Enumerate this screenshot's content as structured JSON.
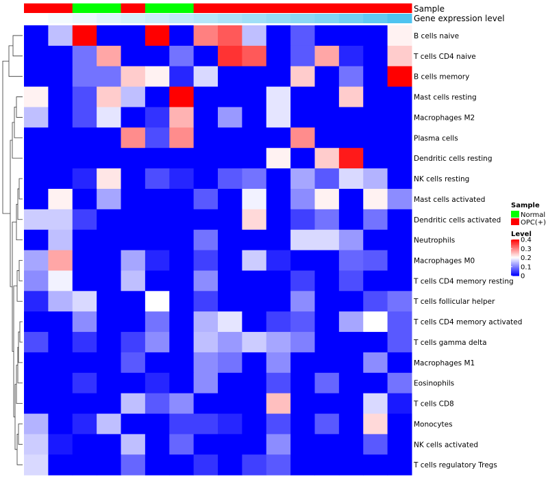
{
  "chart_data": {
    "type": "heatmap",
    "title": "",
    "rows": [
      "B cells naive",
      "T cells CD4 naive",
      "B cells memory",
      "Mast cells resting",
      "Macrophages M2",
      "Plasma cells",
      "Dendritic cells resting",
      "NK cells resting",
      "Mast cells activated",
      "Dendritic cells activated",
      "Neutrophils",
      "Macrophages M0",
      "T cells CD4 memory resting",
      "T cells follicular helper",
      "T cells CD4 memory activated",
      "T cells gamma delta",
      "Macrophages M1",
      "Eosinophils",
      "T cells CD8",
      "Monocytes",
      "NK cells activated",
      "T cells regulatory  Tregs"
    ],
    "n_columns": 16,
    "values": [
      [
        0.0,
        0.15,
        0.4,
        0.0,
        0.0,
        0.4,
        0.0,
        0.3,
        0.33,
        0.15,
        0.0,
        0.07,
        0.0,
        0.0,
        0.0,
        0.21
      ],
      [
        0.0,
        0.0,
        0.09,
        0.27,
        0.0,
        0.0,
        0.09,
        0.0,
        0.36,
        0.33,
        0.0,
        0.07,
        0.27,
        0.03,
        0.0,
        0.24
      ],
      [
        0.0,
        0.0,
        0.09,
        0.09,
        0.24,
        0.21,
        0.03,
        0.17,
        0.0,
        0.0,
        0.0,
        0.24,
        0.0,
        0.09,
        0.0,
        0.4
      ],
      [
        0.21,
        0.0,
        0.06,
        0.24,
        0.15,
        0.0,
        0.4,
        0.0,
        0.0,
        0.0,
        0.18,
        0.0,
        0.0,
        0.24,
        0.0,
        0.0
      ],
      [
        0.15,
        0.0,
        0.06,
        0.18,
        0.0,
        0.04,
        0.26,
        0.0,
        0.12,
        0.0,
        0.18,
        0.0,
        0.0,
        0.0,
        0.0,
        0.0
      ],
      [
        0.0,
        0.0,
        0.0,
        0.0,
        0.29,
        0.06,
        0.29,
        0.0,
        0.0,
        0.0,
        0.0,
        0.29,
        0.0,
        0.0,
        0.0,
        0.0
      ],
      [
        0.0,
        0.0,
        0.0,
        0.0,
        0.0,
        0.0,
        0.0,
        0.0,
        0.0,
        0.0,
        0.21,
        0.0,
        0.24,
        0.38,
        0.0,
        0.0
      ],
      [
        0.0,
        0.0,
        0.03,
        0.22,
        0.0,
        0.06,
        0.03,
        0.0,
        0.07,
        0.09,
        0.0,
        0.13,
        0.07,
        0.17,
        0.14,
        0.0
      ],
      [
        0.0,
        0.21,
        0.0,
        0.13,
        0.0,
        0.0,
        0.0,
        0.07,
        0.0,
        0.19,
        0.0,
        0.11,
        0.21,
        0.0,
        0.21,
        0.11
      ],
      [
        0.16,
        0.16,
        0.05,
        0.0,
        0.0,
        0.0,
        0.0,
        0.0,
        0.0,
        0.23,
        0.0,
        0.05,
        0.09,
        0.0,
        0.09,
        0.0
      ],
      [
        0.0,
        0.15,
        0.0,
        0.0,
        0.0,
        0.0,
        0.0,
        0.09,
        0.0,
        0.0,
        0.0,
        0.17,
        0.17,
        0.12,
        0.0,
        0.0
      ],
      [
        0.13,
        0.27,
        0.0,
        0.0,
        0.13,
        0.03,
        0.0,
        0.05,
        0.0,
        0.16,
        0.03,
        0.0,
        0.0,
        0.08,
        0.07,
        0.0
      ],
      [
        0.11,
        0.19,
        0.0,
        0.0,
        0.15,
        0.0,
        0.0,
        0.11,
        0.0,
        0.0,
        0.0,
        0.05,
        0.0,
        0.06,
        0.0,
        0.0
      ],
      [
        0.03,
        0.14,
        0.17,
        0.0,
        0.0,
        0.2,
        0.0,
        0.05,
        0.0,
        0.0,
        0.0,
        0.11,
        0.0,
        0.0,
        0.06,
        0.09
      ],
      [
        0.0,
        0.0,
        0.11,
        0.0,
        0.0,
        0.09,
        0.0,
        0.14,
        0.18,
        0.0,
        0.05,
        0.07,
        0.0,
        0.13,
        0.2,
        0.07
      ],
      [
        0.06,
        0.0,
        0.04,
        0.0,
        0.05,
        0.11,
        0.0,
        0.15,
        0.12,
        0.16,
        0.13,
        0.1,
        0.0,
        0.0,
        0.0,
        0.07
      ],
      [
        0.0,
        0.0,
        0.0,
        0.0,
        0.07,
        0.0,
        0.0,
        0.11,
        0.09,
        0.0,
        0.11,
        0.0,
        0.0,
        0.0,
        0.11,
        0.0
      ],
      [
        0.0,
        0.0,
        0.04,
        0.0,
        0.0,
        0.03,
        0.0,
        0.11,
        0.0,
        0.0,
        0.06,
        0.0,
        0.08,
        0.0,
        0.0,
        0.09
      ],
      [
        0.0,
        0.0,
        0.0,
        0.0,
        0.15,
        0.07,
        0.11,
        0.0,
        0.0,
        0.0,
        0.25,
        0.0,
        0.0,
        0.0,
        0.17,
        0.02
      ],
      [
        0.14,
        0.0,
        0.03,
        0.15,
        0.0,
        0.0,
        0.05,
        0.05,
        0.03,
        0.0,
        0.06,
        0.0,
        0.07,
        0.0,
        0.23,
        0.0
      ],
      [
        0.16,
        0.02,
        0.0,
        0.0,
        0.15,
        0.0,
        0.08,
        0.0,
        0.0,
        0.0,
        0.11,
        0.0,
        0.0,
        0.0,
        0.07,
        0.0
      ],
      [
        0.17,
        0.0,
        0.0,
        0.0,
        0.08,
        0.0,
        0.0,
        0.04,
        0.0,
        0.05,
        0.07,
        0.0,
        0.0,
        0.0,
        0.0,
        0.0
      ]
    ],
    "color_scale": {
      "min": 0,
      "max": 0.4,
      "low_color": "#0000ff",
      "mid_value": 0.2,
      "mid_color": "#ffffff",
      "high_color": "#ff0000"
    },
    "annotations": [
      {
        "name": "Sample",
        "values": [
          "OPC(+)",
          "OPC(+)",
          "Normal",
          "Normal",
          "OPC(+)",
          "Normal",
          "Normal",
          "OPC(+)",
          "OPC(+)",
          "OPC(+)",
          "OPC(+)",
          "OPC(+)",
          "OPC(+)",
          "OPC(+)",
          "OPC(+)",
          "OPC(+)"
        ]
      },
      {
        "name": "Gene expression level",
        "values": [
          0.0,
          0.06,
          0.12,
          0.18,
          0.24,
          0.3,
          0.36,
          0.42,
          0.48,
          0.54,
          0.6,
          0.66,
          0.72,
          0.8,
          0.9,
          1.0
        ]
      }
    ],
    "legends": [
      {
        "title": "Sample",
        "entries": [
          {
            "label": "Normal",
            "color": "#00ff00"
          },
          {
            "label": "OPC(+)",
            "color": "#ff0000"
          }
        ]
      },
      {
        "title": "Level",
        "ticks": [
          "0.4",
          "0.3",
          "0.2",
          "0.1",
          "0"
        ],
        "tick_values": [
          0.4,
          0.3,
          0.2,
          0.1,
          0
        ]
      }
    ],
    "row_dendrogram": true,
    "colors": {
      "Normal": "#00ff00",
      "OPC(+)": "#ff0000",
      "expr_low": "#ffffff",
      "expr_high": "#4fc3f0"
    }
  }
}
